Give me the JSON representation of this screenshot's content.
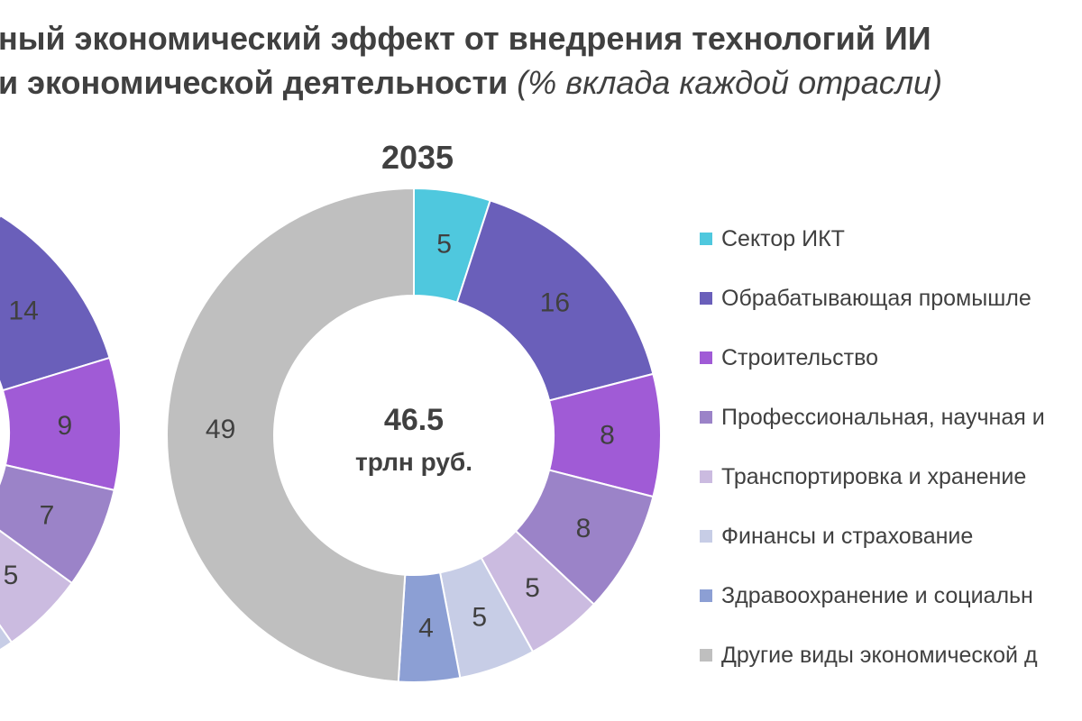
{
  "title": {
    "line1": "ный экономический эффект от внедрения технологий ИИ",
    "line2_main": "и экономической деятельности",
    "line2_note": "(% вклада каждой отрасли)"
  },
  "chart_data": [
    {
      "type": "pie",
      "title": "",
      "partially_visible": true,
      "categories": [
        "Сектор ИКТ",
        "Обрабатывающая промышле",
        "Строительство",
        "Профессиональная, научная и",
        "Транспортировка и хранение",
        "Финансы и страхование"
      ],
      "values": [
        null,
        14,
        9,
        7,
        5,
        null
      ],
      "colors": [
        "#4FC8DE",
        "#6A5FBA",
        "#A05BD6",
        "#9B83C8",
        "#CBBBE0",
        "#C7CDE6"
      ]
    },
    {
      "type": "pie",
      "title": "2035",
      "center_value": "46.5",
      "center_unit": "трлн руб.",
      "categories": [
        "Сектор ИКТ",
        "Обрабатывающая промышле",
        "Строительство",
        "Профессиональная, научная и",
        "Транспортировка и хранение",
        "Финансы и страхование",
        "Здравоохранение и социальн",
        "Другие виды экономической д"
      ],
      "values": [
        5,
        16,
        8,
        8,
        5,
        5,
        4,
        49
      ],
      "colors": [
        "#4FC8DE",
        "#6A5FBA",
        "#A05BD6",
        "#9B83C8",
        "#CBBBE0",
        "#C7CDE6",
        "#8C9FD4",
        "#BFBFBF"
      ]
    }
  ],
  "legend": [
    {
      "label": "Сектор ИКТ",
      "color": "#4FC8DE"
    },
    {
      "label": "Обрабатывающая промышле",
      "color": "#6A5FBA"
    },
    {
      "label": "Строительство",
      "color": "#A05BD6"
    },
    {
      "label": "Профессиональная, научная и",
      "color": "#9B83C8"
    },
    {
      "label": "Транспортировка и хранение",
      "color": "#CBBBE0"
    },
    {
      "label": "Финансы и страхование",
      "color": "#C7CDE6"
    },
    {
      "label": "Здравоохранение и социальн",
      "color": "#8C9FD4"
    },
    {
      "label": "Другие виды экономической д",
      "color": "#BFBFBF"
    }
  ]
}
